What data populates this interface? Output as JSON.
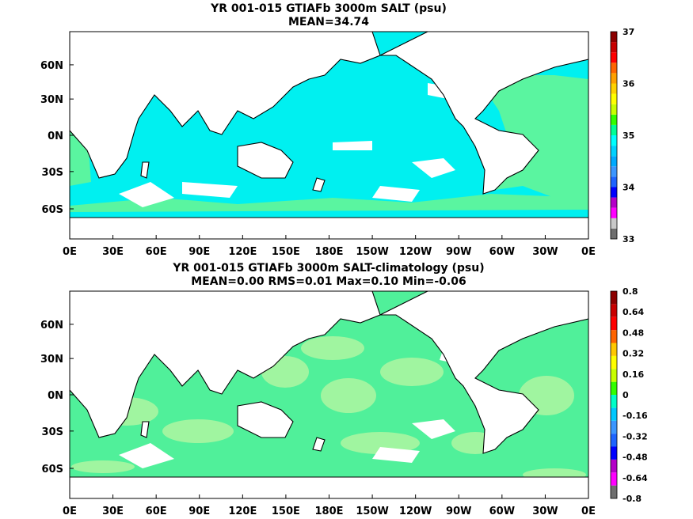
{
  "panels": [
    {
      "title_line1": "YR 001-015 GTIAFb 3000m SALT (psu)",
      "title_line2": "MEAN=34.74",
      "colorbar": {
        "colors": [
          "#6e6e6e",
          "#c8c8c8",
          "#ff00ff",
          "#b400c8",
          "#0000ff",
          "#1e64ff",
          "#3c96ff",
          "#00aaff",
          "#00d2ff",
          "#00ffff",
          "#00ff96",
          "#32ff00",
          "#c8ff00",
          "#ffff00",
          "#ffd200",
          "#ffa000",
          "#ff6400",
          "#ff0000",
          "#c80000",
          "#8c0000"
        ],
        "tick_labels": [
          "37",
          "36",
          "35",
          "34",
          "33"
        ]
      },
      "field": {
        "ocean_color": "#00f0f0",
        "patch_color": "#5af5a0"
      }
    },
    {
      "title_line1": "YR 001-015 GTIAFb 3000m SALT-climatology (psu)",
      "title_line2": "MEAN=0.00   RMS=0.01   Max=0.10   Min=-0.06",
      "colorbar": {
        "colors": [
          "#6e6e6e",
          "#ff00ff",
          "#b400c8",
          "#0000ff",
          "#1e64ff",
          "#3c96ff",
          "#00c8ff",
          "#00ffc8",
          "#32ff00",
          "#c8ff00",
          "#ffff00",
          "#ffc800",
          "#ff6400",
          "#ff0000",
          "#c80000",
          "#8c0000"
        ],
        "tick_labels": [
          "0.8",
          "0.64",
          "0.48",
          "0.32",
          "0.16",
          "0",
          "-0.16",
          "-0.32",
          "-0.48",
          "-0.64",
          "-0.8"
        ]
      },
      "field": {
        "ocean_color": "#50f09a",
        "patch_color": "#a0f5a0"
      }
    }
  ],
  "lat_labels": [
    "60N",
    "30N",
    "0N",
    "30S",
    "60S"
  ],
  "lon_labels": [
    "0E",
    "30E",
    "60E",
    "90E",
    "120E",
    "150E",
    "180E",
    "150W",
    "120W",
    "90W",
    "60W",
    "30W",
    "0E"
  ]
}
